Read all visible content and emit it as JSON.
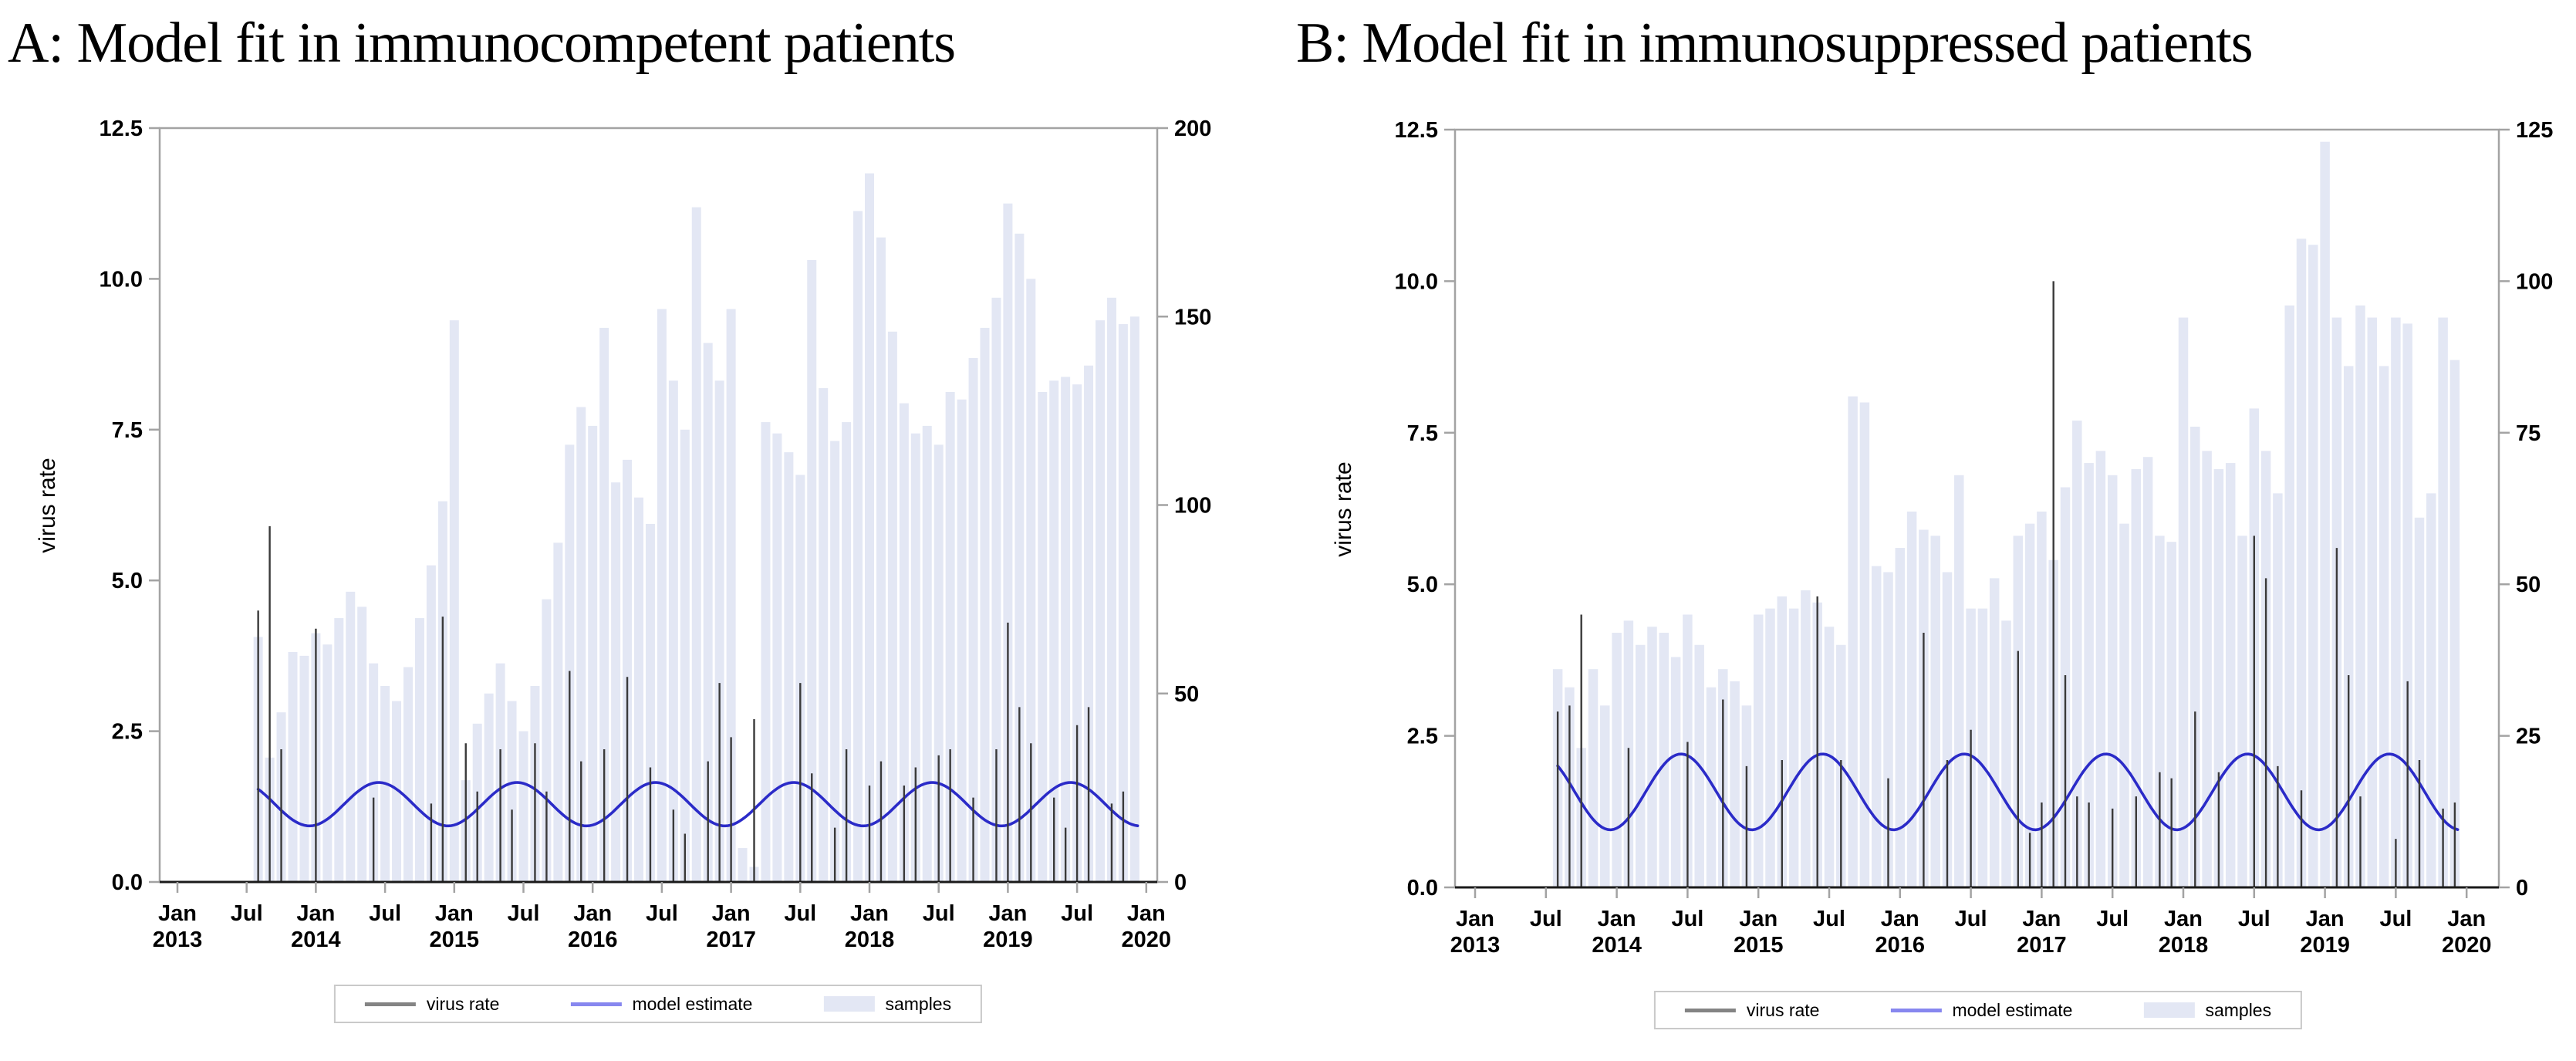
{
  "chart_data": [
    {
      "panel": "A",
      "type": "bar",
      "title": "A: Model fit in immunocompetent patients",
      "ylabel": "virus rate",
      "xlabel": "",
      "grid": false,
      "legend_position": "bottom-center",
      "x_start": "Jan 2013",
      "x_end": "Jan 2020",
      "x_tick_years": [
        2013,
        2014,
        2015,
        2016,
        2017,
        2018,
        2019,
        2020
      ],
      "x_tick_months": [
        "Jan",
        "Jul"
      ],
      "left_axis": {
        "label": "virus rate",
        "lim": [
          0,
          12.5
        ],
        "ticks": [
          "0.0",
          "2.5",
          "5.0",
          "7.5",
          "10.0",
          "12.5"
        ]
      },
      "right_axis": {
        "lim": [
          0,
          200
        ],
        "ticks": [
          0,
          50,
          100,
          150,
          200
        ],
        "series": "samples"
      },
      "data_start_month": "2013-08",
      "months_from": "2013-01",
      "samples": [
        null,
        null,
        null,
        null,
        null,
        null,
        null,
        65,
        33,
        45,
        61,
        60,
        66,
        63,
        70,
        77,
        73,
        58,
        52,
        48,
        57,
        70,
        84,
        101,
        149,
        27,
        42,
        50,
        58,
        48,
        40,
        52,
        75,
        90,
        116,
        126,
        121,
        147,
        106,
        112,
        102,
        95,
        152,
        133,
        120,
        179,
        143,
        133,
        152,
        9,
        4,
        122,
        119,
        114,
        108,
        165,
        131,
        117,
        122,
        178,
        188,
        171,
        146,
        127,
        119,
        121,
        116,
        130,
        128,
        139,
        147,
        155,
        180,
        172,
        160,
        130,
        133,
        134,
        132,
        137,
        149,
        155,
        148,
        150
      ],
      "virus_rate": [
        null,
        null,
        null,
        null,
        null,
        null,
        null,
        4.5,
        5.9,
        2.2,
        0,
        0,
        4.2,
        0,
        0,
        0,
        0,
        1.4,
        0,
        0,
        0,
        0,
        1.3,
        4.4,
        0,
        2.3,
        1.5,
        0,
        2.2,
        1.2,
        0,
        2.3,
        1.5,
        0,
        3.5,
        2.0,
        0,
        2.2,
        0,
        3.4,
        0,
        1.9,
        0,
        1.2,
        0.8,
        0,
        2.0,
        3.3,
        2.4,
        0,
        2.7,
        0,
        0,
        0,
        3.3,
        1.8,
        0,
        0.9,
        2.2,
        0,
        1.6,
        2.0,
        0,
        1.6,
        1.9,
        0,
        2.1,
        2.2,
        0,
        1.4,
        0,
        2.2,
        4.3,
        2.9,
        2.3,
        0,
        1.4,
        0.9,
        2.6,
        2.9,
        0,
        1.3,
        1.5,
        0
      ],
      "model_estimate": {
        "shape": "annual sinusoid",
        "min": 0.93,
        "max": 1.65,
        "peak": "mid-June",
        "trough": "mid-December",
        "start": "2013-08",
        "end": "2019-12",
        "period_months": 12
      }
    },
    {
      "panel": "B",
      "type": "bar",
      "title": "B: Model fit in immunosuppressed patients",
      "ylabel": "virus rate",
      "xlabel": "",
      "grid": false,
      "legend_position": "bottom-center",
      "x_start": "Jan 2013",
      "x_end": "Jan 2020",
      "x_tick_years": [
        2013,
        2014,
        2015,
        2016,
        2017,
        2018,
        2019,
        2020
      ],
      "x_tick_months": [
        "Jan",
        "Jul"
      ],
      "left_axis": {
        "label": "virus rate",
        "lim": [
          0,
          12.5
        ],
        "ticks": [
          "0.0",
          "2.5",
          "5.0",
          "7.5",
          "10.0",
          "12.5"
        ]
      },
      "right_axis": {
        "lim": [
          0,
          125
        ],
        "ticks": [
          0,
          25,
          50,
          75,
          100,
          125
        ],
        "series": "samples"
      },
      "data_start_month": "2013-08",
      "months_from": "2013-01",
      "samples": [
        null,
        null,
        null,
        null,
        null,
        null,
        null,
        36,
        33,
        23,
        36,
        30,
        42,
        44,
        40,
        43,
        42,
        38,
        45,
        40,
        33,
        36,
        34,
        30,
        45,
        46,
        48,
        46,
        49,
        47,
        43,
        40,
        81,
        80,
        53,
        52,
        56,
        62,
        59,
        58,
        52,
        68,
        46,
        46,
        51,
        44,
        58,
        60,
        62,
        54,
        66,
        77,
        70,
        72,
        68,
        60,
        69,
        71,
        58,
        57,
        94,
        76,
        72,
        69,
        70,
        58,
        79,
        72,
        65,
        96,
        107,
        106,
        123,
        94,
        86,
        96,
        94,
        86,
        94,
        93,
        61,
        65,
        94,
        87
      ],
      "virus_rate": [
        null,
        null,
        null,
        null,
        null,
        null,
        null,
        2.9,
        3.0,
        4.5,
        0,
        0,
        0,
        2.3,
        0,
        0,
        0,
        0,
        2.4,
        0,
        0,
        3.1,
        0,
        2.0,
        0,
        0,
        2.1,
        0,
        0,
        4.8,
        0,
        2.1,
        0,
        0,
        0,
        1.8,
        0,
        0,
        4.2,
        0,
        2.1,
        0,
        2.6,
        0,
        0,
        0,
        3.9,
        0.9,
        1.4,
        10.0,
        3.5,
        1.5,
        1.4,
        0,
        1.3,
        0,
        1.5,
        0,
        1.9,
        1.8,
        0,
        2.9,
        0,
        1.9,
        0,
        0,
        5.8,
        5.1,
        2.0,
        0,
        1.6,
        0,
        0,
        5.6,
        3.5,
        1.5,
        0,
        0,
        0.8,
        3.4,
        2.1,
        0,
        1.3,
        1.4
      ],
      "model_estimate": {
        "shape": "annual sinusoid",
        "min": 0.95,
        "max": 2.2,
        "peak": "mid-June",
        "trough": "mid-December",
        "start": "2013-08",
        "end": "2019-12",
        "period_months": 12
      }
    }
  ],
  "legend_items": [
    {
      "label": "virus rate",
      "swatch": "line",
      "color": "#848484"
    },
    {
      "label": "model estimate",
      "swatch": "line",
      "color": "#8787ef"
    },
    {
      "label": "samples",
      "swatch": "bar",
      "color": "#e3e7f4"
    }
  ],
  "colors": {
    "samples_bar": "#e3e7f4",
    "virus_rate_line": "#3a3a3a",
    "model_estimate_line": "#2b2bc8",
    "axis": "#a3a3a3",
    "baseline": "#1a1a1a",
    "tick_text": "#000000",
    "legend_border": "#c9c9c9"
  }
}
